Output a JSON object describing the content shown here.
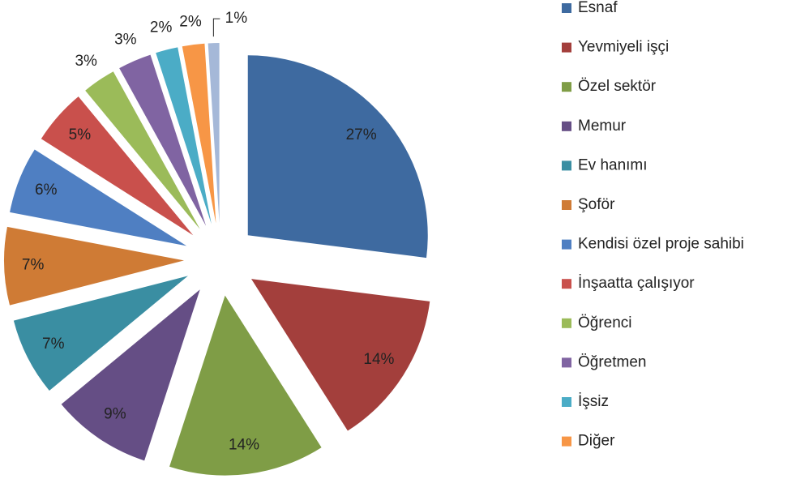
{
  "chart_data": {
    "type": "pie",
    "categories": [
      "Esnaf",
      "Yevmiyeli işçi",
      "Özel sektör",
      "Memur",
      "Ev hanımı",
      "Şoför",
      "Kendisi özel proje sahibi",
      "İnşaatta çalışıyor",
      "Öğrenci",
      "Öğretmen",
      "İşsiz",
      "Diğer",
      null
    ],
    "values": [
      27,
      14,
      14,
      9,
      7,
      7,
      6,
      5,
      3,
      3,
      2,
      2,
      1
    ],
    "value_labels": [
      "27%",
      "14%",
      "14%",
      "9%",
      "7%",
      "7%",
      "6%",
      "5%",
      "3%",
      "3%",
      "2%",
      "2%",
      "1%"
    ],
    "colors": [
      "#3e6aa0",
      "#a33f3c",
      "#7f9d46",
      "#654e85",
      "#3a8ea2",
      "#cf7b35",
      "#4f7fc2",
      "#c9504c",
      "#9bbb59",
      "#8064a2",
      "#4bacc6",
      "#f79646",
      "#a5b8d8"
    ],
    "legend": "right"
  }
}
